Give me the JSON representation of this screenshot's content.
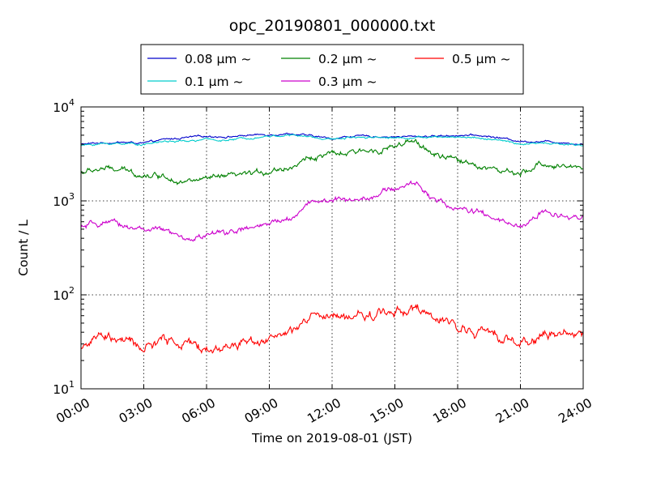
{
  "chart_data": {
    "type": "line",
    "title": "opc_20190801_000000.txt",
    "xlabel": "Time on 2019-08-01 (JST)",
    "ylabel": "Count / L",
    "yscale": "log",
    "xlim": [
      0,
      24
    ],
    "ylim": [
      10,
      10000
    ],
    "grid": true,
    "legend_position": "top-center",
    "x_ticks": [
      "00:00",
      "03:00",
      "06:00",
      "09:00",
      "12:00",
      "15:00",
      "18:00",
      "21:00",
      "24:00"
    ],
    "y_ticks": [
      {
        "value": 10,
        "base": "10",
        "exp": "1"
      },
      {
        "value": 100,
        "base": "10",
        "exp": "2"
      },
      {
        "value": 1000,
        "base": "10",
        "exp": "3"
      },
      {
        "value": 10000,
        "base": "10",
        "exp": "4"
      }
    ],
    "x": [
      0,
      1,
      2,
      3,
      4,
      5,
      6,
      7,
      8,
      9,
      10,
      11,
      12,
      13,
      14,
      15,
      16,
      17,
      18,
      19,
      20,
      21,
      22,
      23,
      24
    ],
    "series": [
      {
        "name": "0.08 μm ~",
        "color": "#0000cc",
        "values": [
          4000,
          4150,
          4200,
          4100,
          4500,
          4700,
          4900,
          4800,
          5000,
          5100,
          5200,
          4900,
          4600,
          4900,
          4850,
          4800,
          4850,
          4900,
          5000,
          4950,
          4700,
          4300,
          4300,
          4200,
          4000
        ]
      },
      {
        "name": "0.1 μm ~",
        "color": "#00cccc",
        "values": [
          3900,
          4050,
          4100,
          4000,
          4300,
          4300,
          4500,
          4400,
          4700,
          4900,
          5000,
          4800,
          4500,
          4800,
          4800,
          4700,
          4750,
          4750,
          4800,
          4700,
          4400,
          4000,
          4100,
          4000,
          3900
        ]
      },
      {
        "name": "0.2 μm ~",
        "color": "#008000",
        "values": [
          2000,
          2200,
          2100,
          1900,
          1850,
          1600,
          1700,
          1800,
          1900,
          2100,
          2300,
          2900,
          3100,
          3200,
          3500,
          3800,
          4200,
          3000,
          2700,
          2400,
          2100,
          1850,
          2500,
          2300,
          2300
        ]
      },
      {
        "name": "0.3 μm ~",
        "color": "#cc00cc",
        "values": [
          520,
          580,
          550,
          500,
          480,
          380,
          430,
          470,
          500,
          560,
          650,
          1000,
          1000,
          1050,
          1150,
          1350,
          1550,
          1000,
          820,
          750,
          600,
          520,
          750,
          700,
          700
        ]
      },
      {
        "name": "0.5 μm ~",
        "color": "#ff0000",
        "values": [
          28,
          36,
          33,
          27,
          33,
          30,
          26,
          28,
          33,
          35,
          38,
          58,
          56,
          58,
          62,
          68,
          72,
          52,
          47,
          40,
          37,
          30,
          38,
          38,
          38
        ]
      }
    ]
  }
}
